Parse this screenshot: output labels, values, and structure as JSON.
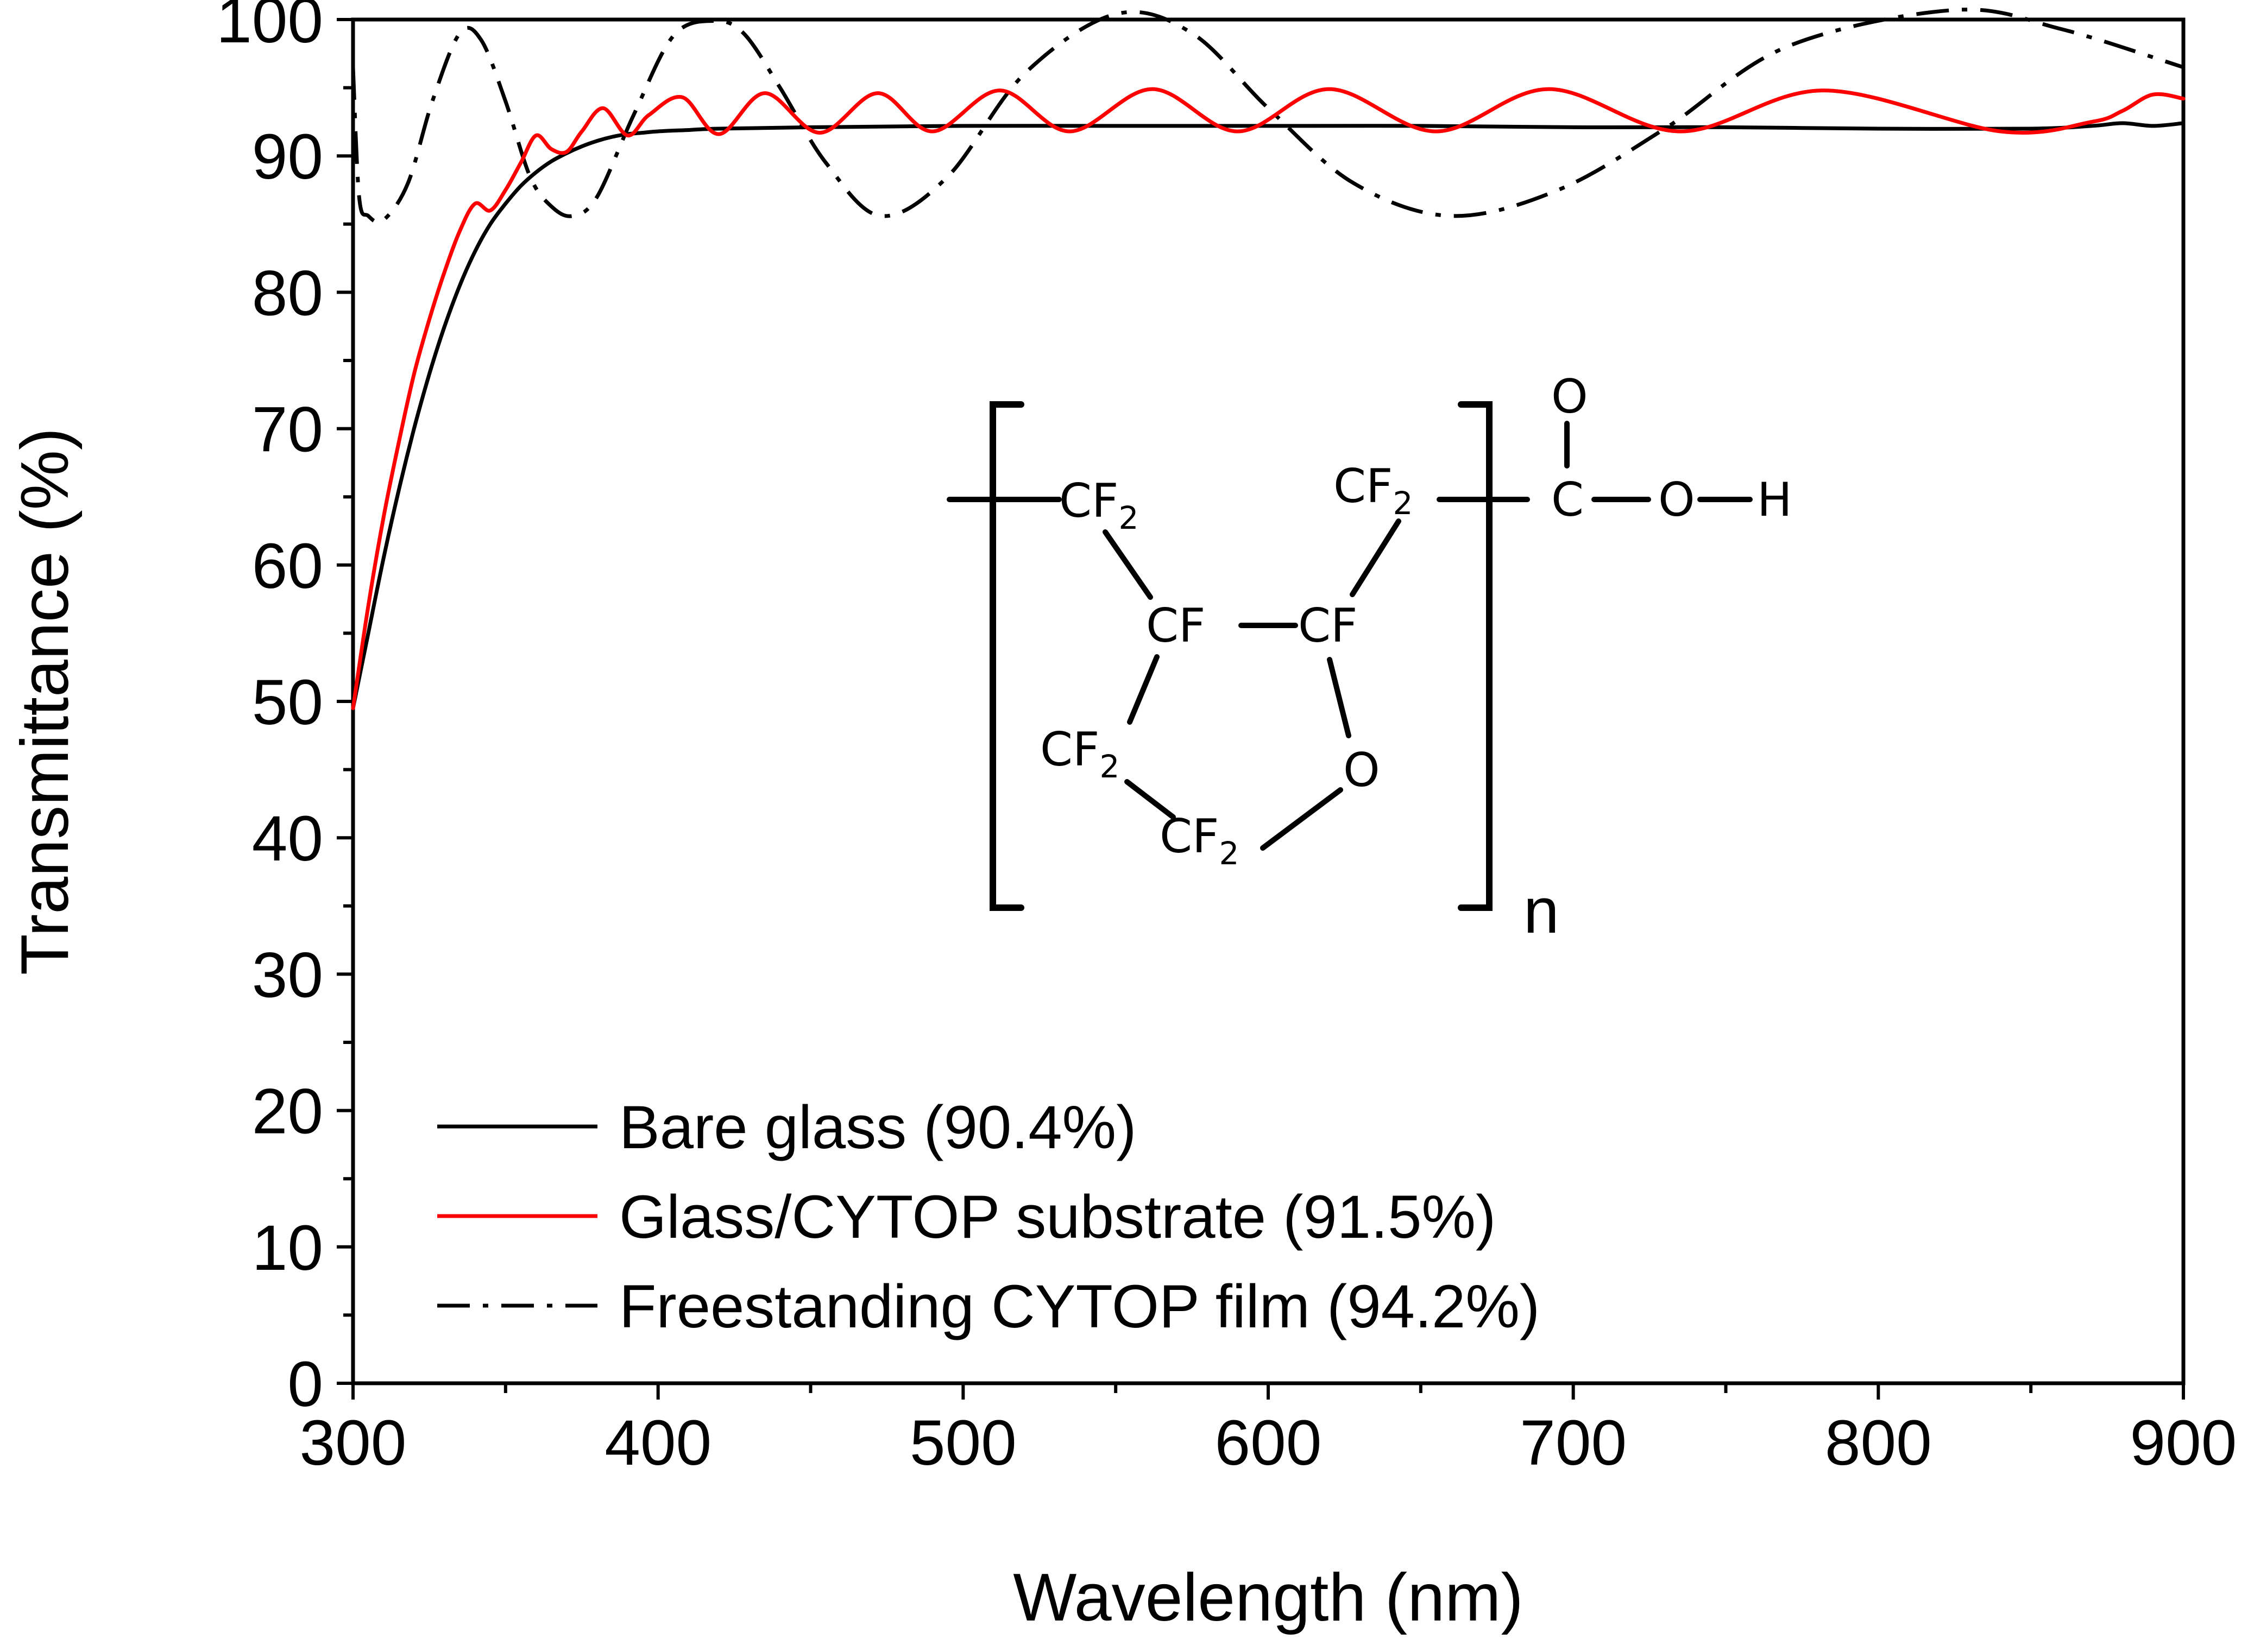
{
  "chart_data": {
    "type": "line",
    "title": "",
    "xlabel": "Wavelength (nm)",
    "ylabel": "Transmittance (%)",
    "xlim": [
      300,
      900
    ],
    "ylim": [
      0,
      100
    ],
    "x_ticks": [
      300,
      400,
      500,
      600,
      700,
      800,
      900
    ],
    "y_ticks": [
      0,
      10,
      20,
      30,
      40,
      50,
      60,
      70,
      80,
      90,
      100
    ],
    "grid": false,
    "legend_position": "bottom-left",
    "series": [
      {
        "name": "Bare glass (90.4%)",
        "color": "#000000",
        "style": "solid",
        "x": [
          300,
          305,
          310,
          315,
          320,
          325,
          330,
          335,
          340,
          345,
          350,
          355,
          360,
          365,
          370,
          375,
          380,
          385,
          390,
          395,
          400,
          410,
          420,
          450,
          500,
          550,
          600,
          650,
          700,
          750,
          800,
          850,
          870,
          880,
          890,
          900
        ],
        "y": [
          49.5,
          55,
          60.5,
          65.5,
          70,
          74,
          77.5,
          80.5,
          83,
          85,
          86.5,
          87.8,
          88.8,
          89.6,
          90.2,
          90.7,
          91.1,
          91.4,
          91.6,
          91.7,
          91.8,
          91.9,
          92,
          92.1,
          92.2,
          92.2,
          92.2,
          92.2,
          92.1,
          92.1,
          92,
          92,
          92.2,
          92.4,
          92.2,
          92.4
        ]
      },
      {
        "name": "Glass/CYTOP substrate (91.5%)",
        "color": "#ff0000",
        "style": "solid",
        "x": [
          300,
          305,
          310,
          315,
          320,
          325,
          330,
          335,
          340,
          345,
          350,
          355,
          360,
          365,
          370,
          375,
          382,
          390,
          397,
          408,
          420,
          435,
          453,
          472,
          490,
          512,
          535,
          562,
          590,
          620,
          655,
          692,
          735,
          782,
          840,
          870,
          880,
          890,
          900
        ],
        "y": [
          49.5,
          57,
          63.5,
          69,
          74,
          78,
          81.5,
          84.5,
          86.5,
          86,
          87.5,
          89.5,
          91.5,
          90.5,
          90.3,
          91.8,
          93.5,
          91.5,
          93,
          94.3,
          91.6,
          94.6,
          91.7,
          94.6,
          91.8,
          94.8,
          91.8,
          94.9,
          91.8,
          94.9,
          91.8,
          94.9,
          91.8,
          94.8,
          91.8,
          92.5,
          93.3,
          94.5,
          94.2
        ]
      },
      {
        "name": "Freestanding CYTOP  film (94.2%)",
        "color": "#000000",
        "style": "dashdot",
        "x": [
          300,
          302,
          305,
          310,
          318,
          326,
          335,
          342,
          350,
          358,
          365,
          372,
          380,
          392,
          405,
          418,
          428,
          440,
          455,
          473,
          495,
          520,
          550,
          575,
          600,
          628,
          660,
          695,
          730,
          770,
          825,
          860,
          900
        ],
        "y": [
          96.5,
          87,
          85.6,
          85.3,
          88,
          94,
          99,
          98.5,
          94,
          88.5,
          86.3,
          85.6,
          87,
          93,
          98.8,
          99.9,
          99,
          95,
          89.5,
          85.6,
          88.5,
          96,
          100.4,
          99,
          93.5,
          88,
          85.6,
          87.5,
          92,
          98,
          100.7,
          99.3,
          96.5
        ]
      }
    ],
    "annotations": {
      "structure_labels": [
        "CF2",
        "CF2",
        "CF",
        "CF",
        "CF2",
        "CF2",
        "O",
        "O",
        "C",
        "O",
        "H",
        "n"
      ]
    }
  }
}
